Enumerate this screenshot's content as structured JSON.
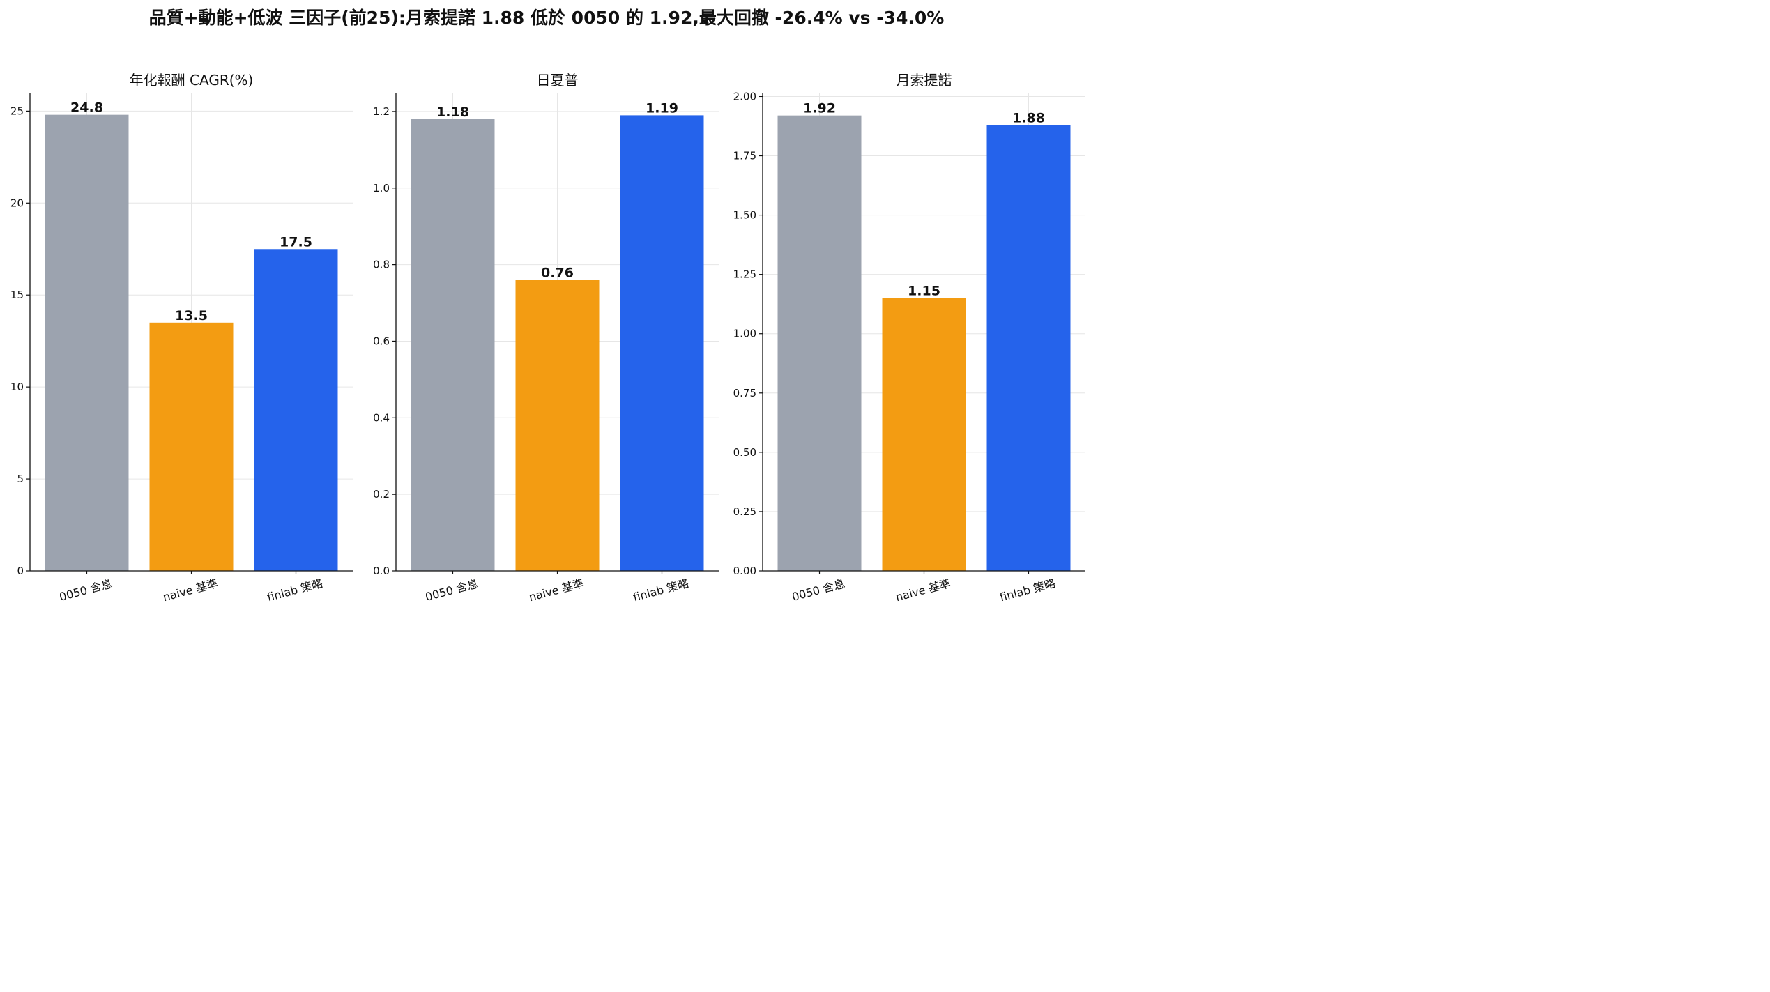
{
  "figure": {
    "suptitle": "品質+動能+低波 三因子(前25):月索提諾 1.88 低於 0050 的 1.92,最大回撤 -26.4% vs -34.0%"
  },
  "colors": [
    "#9ca3af",
    "#f39c12",
    "#2563eb"
  ],
  "chart_data": [
    {
      "type": "bar",
      "title": "年化報酬 CAGR(%)",
      "categories": [
        "0050 含息",
        "naive 基準",
        "finlab 策略"
      ],
      "values": [
        24.8,
        13.5,
        17.5
      ],
      "value_labels": [
        "24.8",
        "13.5",
        "17.5"
      ],
      "ylim": [
        0,
        26
      ],
      "yticks": [
        0,
        5,
        10,
        15,
        20,
        25
      ],
      "ytick_labels": [
        "0",
        "5",
        "10",
        "15",
        "20",
        "25"
      ],
      "grid": true
    },
    {
      "type": "bar",
      "title": "日夏普",
      "categories": [
        "0050 含息",
        "naive 基準",
        "finlab 策略"
      ],
      "values": [
        1.18,
        0.76,
        1.19
      ],
      "value_labels": [
        "1.18",
        "0.76",
        "1.19"
      ],
      "ylim": [
        0,
        1.249
      ],
      "yticks": [
        0.0,
        0.2,
        0.4,
        0.6,
        0.8,
        1.0,
        1.2
      ],
      "ytick_labels": [
        "0.0",
        "0.2",
        "0.4",
        "0.6",
        "0.8",
        "1.0",
        "1.2"
      ],
      "grid": true
    },
    {
      "type": "bar",
      "title": "月索提諾",
      "categories": [
        "0050 含息",
        "naive 基準",
        "finlab 策略"
      ],
      "values": [
        1.92,
        1.15,
        1.88
      ],
      "value_labels": [
        "1.92",
        "1.15",
        "1.88"
      ],
      "ylim": [
        0,
        2.016
      ],
      "yticks": [
        0.0,
        0.25,
        0.5,
        0.75,
        1.0,
        1.25,
        1.5,
        1.75,
        2.0
      ],
      "ytick_labels": [
        "0.00",
        "0.25",
        "0.50",
        "0.75",
        "1.00",
        "1.25",
        "1.50",
        "1.75",
        "2.00"
      ],
      "grid": true
    }
  ]
}
